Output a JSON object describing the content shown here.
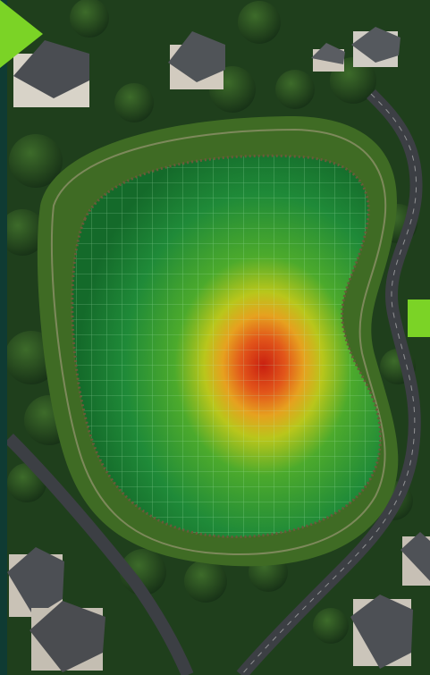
{
  "scene": {
    "kind": "aerial view",
    "subject": "pond heatmap",
    "heatmap_levels": [
      "low",
      "medium",
      "high"
    ],
    "colors": {
      "canopy": "#1f3f1c",
      "lawn": "#3f6b24",
      "road": "#3c3f44",
      "water_low": "#1b8a3a",
      "water_mid": "#d9c21a",
      "water_hot": "#c91f10",
      "grid": "#9bd7a8",
      "nav_accent": "#7bd326"
    },
    "icons": {
      "left_control": "arrow-right-icon",
      "right_control": "tab-marker-icon"
    }
  }
}
